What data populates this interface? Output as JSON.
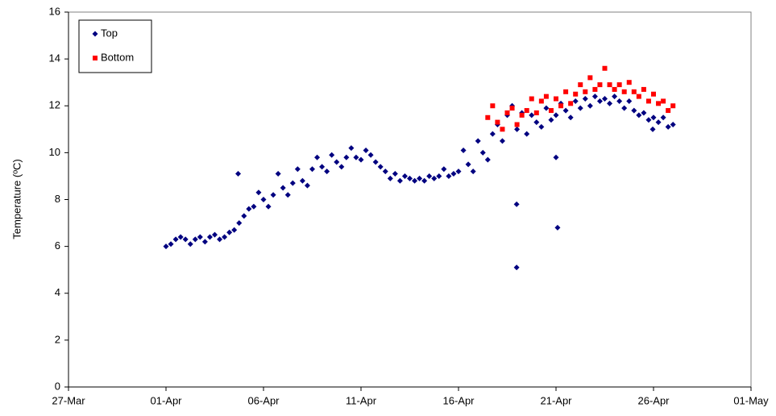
{
  "chart_data": {
    "type": "scatter",
    "ylabel": "Temperature (ºC)",
    "xlim": [
      0,
      35
    ],
    "xticks": [
      {
        "value": 0,
        "label": "27-Mar"
      },
      {
        "value": 5,
        "label": "01-Apr"
      },
      {
        "value": 10,
        "label": "06-Apr"
      },
      {
        "value": 15,
        "label": "11-Apr"
      },
      {
        "value": 20,
        "label": "16-Apr"
      },
      {
        "value": 25,
        "label": "21-Apr"
      },
      {
        "value": 30,
        "label": "26-Apr"
      },
      {
        "value": 35,
        "label": "01-May"
      }
    ],
    "ylim": [
      0,
      16
    ],
    "yticks": [
      0,
      2,
      4,
      6,
      8,
      10,
      12,
      14,
      16
    ],
    "grid": false,
    "legend": "upper left",
    "series": [
      {
        "name": "Top",
        "color": "#000080",
        "marker": "diamond",
        "x": [
          5.0,
          5.25,
          5.5,
          5.75,
          6.0,
          6.25,
          6.5,
          6.75,
          7.0,
          7.25,
          7.5,
          7.75,
          8.0,
          8.25,
          8.5,
          8.75,
          9.0,
          9.25,
          9.5,
          9.75,
          10.0,
          10.25,
          10.5,
          10.75,
          11.0,
          11.25,
          11.5,
          11.75,
          12.0,
          12.25,
          12.5,
          12.75,
          13.0,
          13.25,
          13.5,
          13.75,
          14.0,
          14.25,
          14.5,
          14.75,
          15.0,
          15.25,
          15.5,
          15.75,
          16.0,
          16.25,
          16.5,
          16.75,
          17.0,
          17.25,
          17.5,
          17.75,
          18.0,
          18.25,
          18.5,
          18.75,
          19.0,
          19.25,
          19.5,
          19.75,
          20.0,
          20.25,
          20.5,
          20.75,
          21.0,
          21.25,
          21.5,
          21.75,
          22.0,
          22.25,
          22.5,
          22.75,
          23.0,
          23.25,
          23.5,
          23.75,
          24.0,
          24.25,
          24.5,
          24.75,
          25.0,
          25.25,
          25.5,
          25.75,
          26.0,
          26.25,
          26.5,
          26.75,
          27.0,
          27.25,
          27.5,
          27.75,
          28.0,
          28.25,
          28.5,
          28.75,
          29.0,
          29.25,
          29.5,
          29.75,
          30.0,
          30.25,
          30.5,
          30.75,
          31.0,
          8.7,
          22.98,
          22.98,
          25.08,
          25.0,
          29.96
        ],
        "values": [
          6.0,
          6.1,
          6.3,
          6.4,
          6.3,
          6.1,
          6.3,
          6.4,
          6.2,
          6.4,
          6.5,
          6.3,
          6.4,
          6.6,
          6.7,
          7.0,
          7.3,
          7.6,
          7.7,
          8.3,
          8.0,
          7.7,
          8.2,
          9.1,
          8.5,
          8.2,
          8.7,
          9.3,
          8.8,
          8.6,
          9.3,
          9.8,
          9.4,
          9.2,
          9.9,
          9.6,
          9.4,
          9.8,
          10.2,
          9.8,
          9.7,
          10.1,
          9.9,
          9.6,
          9.4,
          9.2,
          8.9,
          9.1,
          8.8,
          9.0,
          8.9,
          8.8,
          8.9,
          8.8,
          9.0,
          8.9,
          9.0,
          9.3,
          9.0,
          9.1,
          9.2,
          10.1,
          9.5,
          9.2,
          10.5,
          10.0,
          9.7,
          10.8,
          11.2,
          10.5,
          11.6,
          12.0,
          11.0,
          11.7,
          10.8,
          11.6,
          11.3,
          11.1,
          11.9,
          11.4,
          11.6,
          12.1,
          11.8,
          11.5,
          12.2,
          11.9,
          12.3,
          12.0,
          12.4,
          12.2,
          12.3,
          12.1,
          12.4,
          12.2,
          11.9,
          12.2,
          11.8,
          11.6,
          11.7,
          11.4,
          11.5,
          11.3,
          11.5,
          11.1,
          11.2,
          9.1,
          7.8,
          5.1,
          6.8,
          9.8,
          11.0
        ]
      },
      {
        "name": "Bottom",
        "color": "#ff0000",
        "marker": "square",
        "x": [
          21.5,
          21.75,
          22.0,
          22.25,
          22.5,
          22.75,
          23.0,
          23.25,
          23.5,
          23.75,
          24.0,
          24.25,
          24.5,
          24.75,
          25.0,
          25.25,
          25.5,
          25.75,
          26.0,
          26.25,
          26.5,
          26.75,
          27.0,
          27.25,
          27.5,
          27.75,
          28.0,
          28.25,
          28.5,
          28.75,
          29.0,
          29.25,
          29.5,
          29.75,
          30.0,
          30.25,
          30.5,
          30.75,
          31.0
        ],
        "values": [
          11.5,
          12.0,
          11.3,
          11.0,
          11.7,
          11.9,
          11.2,
          11.6,
          11.8,
          12.3,
          11.7,
          12.2,
          12.4,
          11.8,
          12.3,
          12.0,
          12.6,
          12.1,
          12.5,
          12.9,
          12.6,
          13.2,
          12.7,
          12.9,
          13.6,
          12.9,
          12.7,
          12.9,
          12.6,
          13.0,
          12.6,
          12.4,
          12.7,
          12.2,
          12.5,
          12.1,
          12.2,
          11.8,
          12.0
        ]
      }
    ]
  }
}
